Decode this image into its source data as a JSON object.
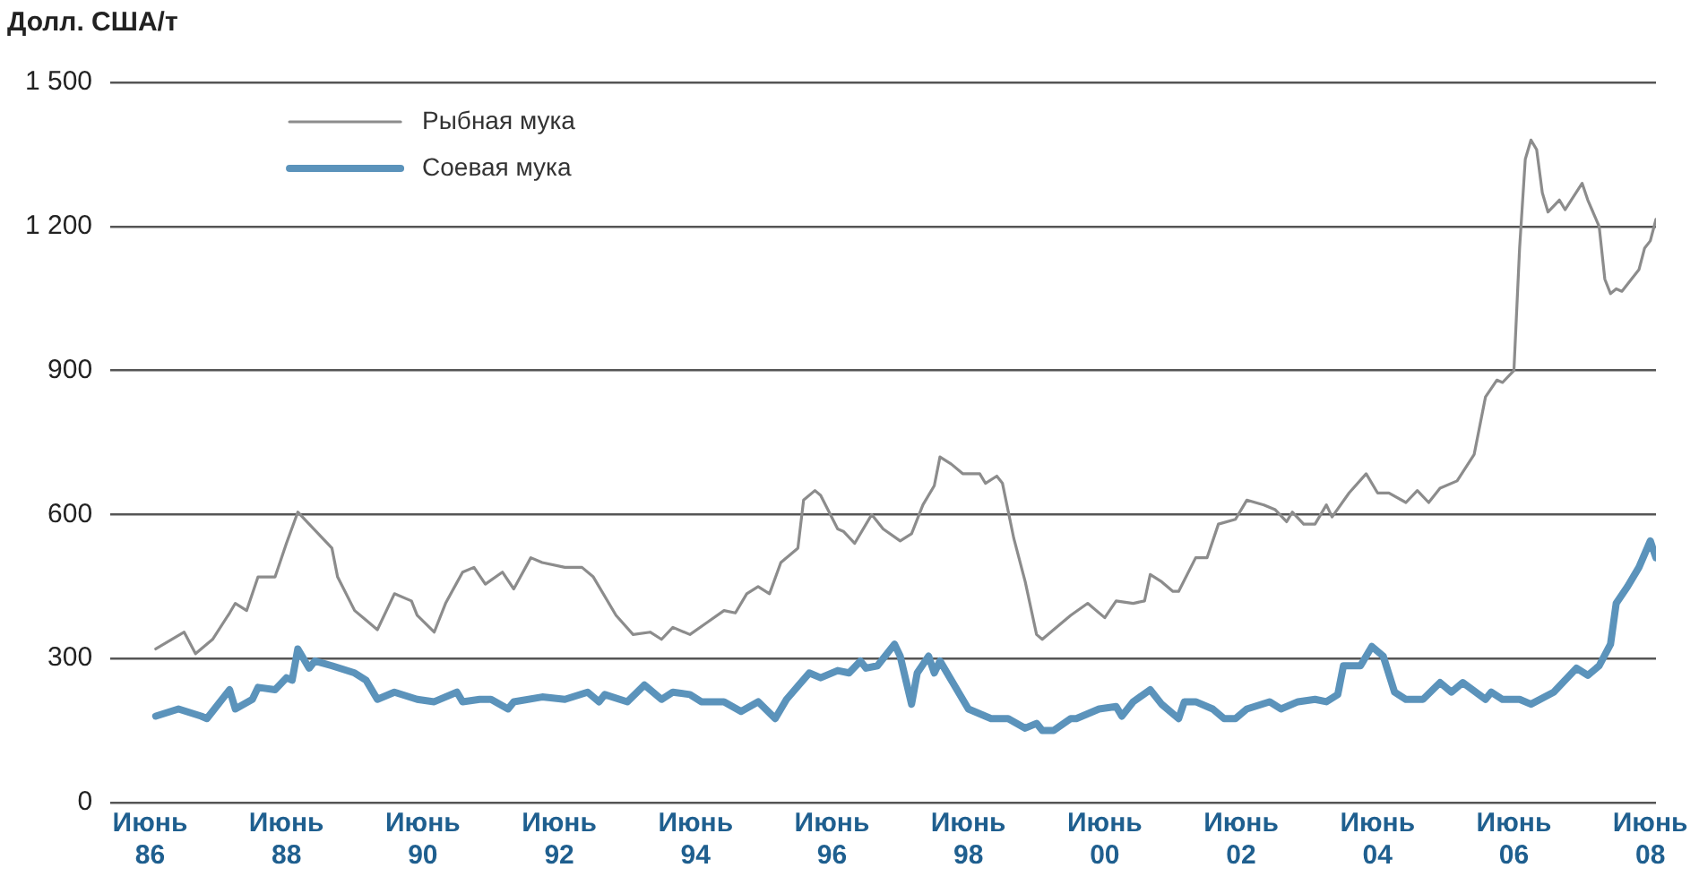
{
  "chart_data": {
    "type": "line",
    "ylabel": "Долл. США/т",
    "xlim": [
      "1985-11",
      "2008-07"
    ],
    "xticks": [
      {
        "value": "1986-06",
        "label": "Июнь 86"
      },
      {
        "value": "1988-06",
        "label": "Июнь 88"
      },
      {
        "value": "1990-06",
        "label": "Июнь 90"
      },
      {
        "value": "1992-06",
        "label": "Июнь 92"
      },
      {
        "value": "1994-06",
        "label": "Июнь 94"
      },
      {
        "value": "1996-06",
        "label": "Июнь 96"
      },
      {
        "value": "1998-06",
        "label": "Июнь 98"
      },
      {
        "value": "2000-06",
        "label": "Июнь 00"
      },
      {
        "value": "2002-06",
        "label": "Июнь 02"
      },
      {
        "value": "2004-06",
        "label": "Июнь 04"
      },
      {
        "value": "2006-06",
        "label": "Июнь 06"
      },
      {
        "value": "2008-06",
        "label": "Июнь 08"
      }
    ],
    "ylim": [
      0,
      1500
    ],
    "yticks": [
      0,
      300,
      600,
      900,
      {
        "value": 1200,
        "label": "1 200"
      },
      {
        "value": 1500,
        "label": "1 500"
      }
    ],
    "grid": "y",
    "legend": "top left",
    "marker": "none",
    "series": [
      {
        "name": "Рыбная мука",
        "color": "#8c8c8c",
        "x": [
          "1986-07",
          "1986-12",
          "1987-02",
          "1987-05",
          "1987-08",
          "1987-09",
          "1987-11",
          "1988-01",
          "1988-04",
          "1988-06",
          "1988-08",
          "1988-10",
          "1989-02",
          "1989-03",
          "1989-06",
          "1989-08",
          "1989-10",
          "1990-01",
          "1990-04",
          "1990-05",
          "1990-08",
          "1990-10",
          "1991-01",
          "1991-03",
          "1991-05",
          "1991-08",
          "1991-10",
          "1992-01",
          "1992-03",
          "1992-07",
          "1992-10",
          "1992-12",
          "1993-04",
          "1993-07",
          "1993-10",
          "1993-12",
          "1994-02",
          "1994-05",
          "1994-08",
          "1994-11",
          "1995-01",
          "1995-03",
          "1995-05",
          "1995-07",
          "1995-09",
          "1995-12",
          "1996-01",
          "1996-03",
          "1996-04",
          "1996-07",
          "1996-08",
          "1996-10",
          "1997-01",
          "1997-03",
          "1997-06",
          "1997-08",
          "1997-10",
          "1997-12",
          "1998-01",
          "1998-03",
          "1998-05",
          "1998-08",
          "1998-09",
          "1998-11",
          "1998-12",
          "1999-02",
          "1999-04",
          "1999-06",
          "1999-07",
          "1999-09",
          "1999-12",
          "2000-03",
          "2000-06",
          "2000-08",
          "2000-11",
          "2001-01",
          "2001-02",
          "2001-04",
          "2001-06",
          "2001-07",
          "2001-10",
          "2001-12",
          "2002-02",
          "2002-05",
          "2002-07",
          "2002-10",
          "2002-12",
          "2003-02",
          "2003-03",
          "2003-05",
          "2003-07",
          "2003-09",
          "2003-10",
          "2004-01",
          "2004-04",
          "2004-06",
          "2004-08",
          "2004-11",
          "2005-01",
          "2005-03",
          "2005-05",
          "2005-08",
          "2005-11",
          "2006-01",
          "2006-03",
          "2006-04",
          "2006-06",
          "2006-07",
          "2006-08",
          "2006-09",
          "2006-10",
          "2006-11",
          "2006-12",
          "2007-02",
          "2007-03",
          "2007-06",
          "2007-07",
          "2007-09",
          "2007-10",
          "2007-11",
          "2007-12",
          "2008-01",
          "2008-04",
          "2008-05",
          "2008-06",
          "2008-07"
        ],
        "values": [
          320,
          355,
          310,
          340,
          395,
          415,
          400,
          470,
          470,
          540,
          605,
          580,
          530,
          470,
          400,
          380,
          360,
          435,
          420,
          390,
          355,
          415,
          480,
          490,
          455,
          480,
          445,
          510,
          500,
          490,
          490,
          470,
          390,
          350,
          355,
          340,
          365,
          350,
          375,
          400,
          395,
          435,
          450,
          435,
          500,
          530,
          630,
          650,
          640,
          570,
          565,
          540,
          600,
          570,
          545,
          560,
          620,
          660,
          720,
          705,
          685,
          685,
          665,
          680,
          665,
          550,
          460,
          350,
          340,
          360,
          390,
          415,
          385,
          420,
          415,
          420,
          475,
          460,
          440,
          440,
          510,
          510,
          580,
          590,
          630,
          620,
          610,
          585,
          605,
          580,
          580,
          620,
          595,
          645,
          685,
          645,
          645,
          625,
          650,
          625,
          655,
          670,
          725,
          845,
          880,
          875,
          900,
          1155,
          1340,
          1380,
          1360,
          1270,
          1230,
          1255,
          1235,
          1290,
          1255,
          1200,
          1090,
          1060,
          1070,
          1065,
          1110,
          1155,
          1170,
          1215
        ]
      },
      {
        "name": "Соевая мука",
        "color": "#5b93bb",
        "x": [
          "1986-07",
          "1986-11",
          "1987-03",
          "1987-04",
          "1987-08",
          "1987-09",
          "1987-12",
          "1988-01",
          "1988-04",
          "1988-06",
          "1988-07",
          "1988-08",
          "1988-10",
          "1988-11",
          "1989-02",
          "1989-06",
          "1989-08",
          "1989-10",
          "1990-01",
          "1990-05",
          "1990-08",
          "1990-12",
          "1991-01",
          "1991-04",
          "1991-06",
          "1991-09",
          "1991-10",
          "1992-03",
          "1992-07",
          "1992-11",
          "1993-01",
          "1993-02",
          "1993-06",
          "1993-09",
          "1993-12",
          "1994-02",
          "1994-05",
          "1994-07",
          "1994-11",
          "1995-02",
          "1995-05",
          "1995-08",
          "1995-10",
          "1996-02",
          "1996-04",
          "1996-07",
          "1996-09",
          "1996-11",
          "1996-12",
          "1997-02",
          "1997-05",
          "1997-06",
          "1997-08",
          "1997-09",
          "1997-11",
          "1997-12",
          "1998-01",
          "1998-06",
          "1998-10",
          "1999-01",
          "1999-04",
          "1999-06",
          "1999-07",
          "1999-09",
          "1999-12",
          "2000-01",
          "2000-05",
          "2000-08",
          "2000-09",
          "2000-11",
          "2001-02",
          "2001-04",
          "2001-07",
          "2001-08",
          "2001-10",
          "2002-01",
          "2002-03",
          "2002-05",
          "2002-07",
          "2002-11",
          "2003-01",
          "2003-04",
          "2003-07",
          "2003-09",
          "2003-11",
          "2003-12",
          "2004-03",
          "2004-05",
          "2004-07",
          "2004-09",
          "2004-11",
          "2005-02",
          "2005-05",
          "2005-07",
          "2005-09",
          "2006-01",
          "2006-02",
          "2006-04",
          "2006-07",
          "2006-09",
          "2007-01",
          "2007-05",
          "2007-07",
          "2007-09",
          "2007-11",
          "2007-12",
          "2008-02",
          "2008-04",
          "2008-06",
          "2008-07"
        ],
        "values": [
          180,
          195,
          180,
          175,
          235,
          195,
          215,
          240,
          235,
          260,
          255,
          320,
          280,
          295,
          285,
          270,
          255,
          215,
          230,
          215,
          210,
          230,
          210,
          215,
          215,
          195,
          210,
          220,
          215,
          230,
          210,
          225,
          210,
          245,
          215,
          230,
          225,
          210,
          210,
          190,
          210,
          175,
          215,
          270,
          260,
          275,
          270,
          295,
          280,
          285,
          330,
          305,
          205,
          270,
          305,
          270,
          295,
          195,
          175,
          175,
          155,
          165,
          150,
          150,
          175,
          175,
          195,
          200,
          180,
          210,
          235,
          205,
          175,
          210,
          210,
          195,
          175,
          175,
          195,
          210,
          195,
          210,
          215,
          210,
          225,
          285,
          285,
          325,
          305,
          230,
          215,
          215,
          250,
          230,
          250,
          215,
          230,
          215,
          215,
          205,
          230,
          280,
          265,
          285,
          330,
          415,
          450,
          490,
          545,
          510
        ]
      }
    ]
  }
}
